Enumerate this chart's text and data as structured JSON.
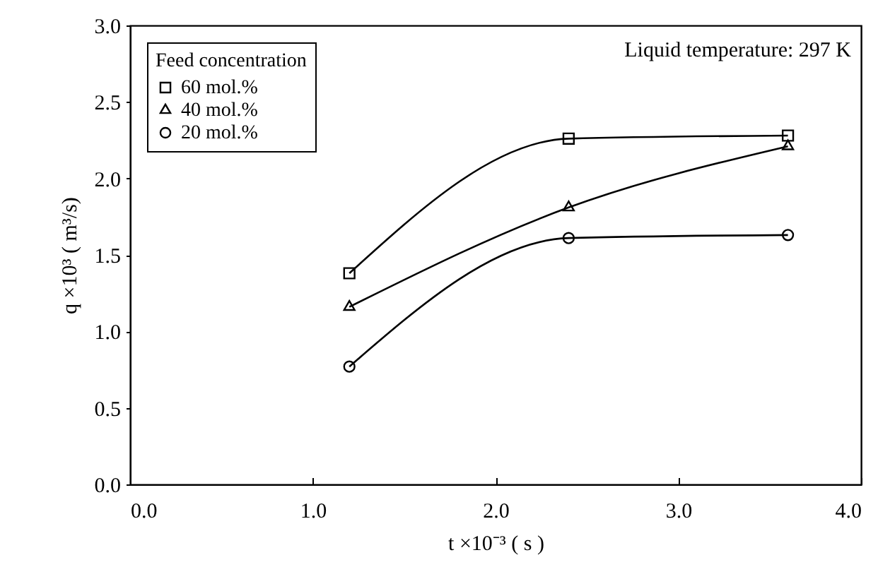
{
  "chart_data": {
    "type": "line",
    "xlabel": "t ×10⁻³ ( s )",
    "ylabel": "q ×10³ ( m³/s)",
    "legend_title": "Feed concentration",
    "annotations": [
      "Liquid temperature: 297 K"
    ],
    "x": [
      1.2,
      2.4,
      3.6
    ],
    "series": [
      {
        "name": "60 mol.%",
        "color": "#000000",
        "marker": "square",
        "values": [
          1.38,
          2.26,
          2.28
        ]
      },
      {
        "name": "40 mol.%",
        "color": "#000000",
        "marker": "triangle",
        "values": [
          1.16,
          1.81,
          2.21
        ]
      },
      {
        "name": "20 mol.%",
        "color": "#000000",
        "marker": "circle",
        "values": [
          0.77,
          1.61,
          1.63
        ]
      }
    ],
    "xlim": [
      0,
      4
    ],
    "xticks": [
      {
        "value": 0,
        "label": "0.0"
      },
      {
        "value": 1,
        "label": "1.0"
      },
      {
        "value": 2,
        "label": "2.0"
      },
      {
        "value": 3,
        "label": "3.0"
      },
      {
        "value": 4,
        "label": "4.0"
      }
    ],
    "ylim": [
      0,
      3
    ],
    "yticks": [
      {
        "value": 0,
        "label": "0.0"
      },
      0.5,
      {
        "value": 1,
        "label": "1.0"
      },
      1.5,
      {
        "value": 2,
        "label": "2.0"
      },
      2.5,
      {
        "value": 3,
        "label": "3.0"
      }
    ],
    "grid": false,
    "legend": "top left",
    "line_style": "solid"
  }
}
